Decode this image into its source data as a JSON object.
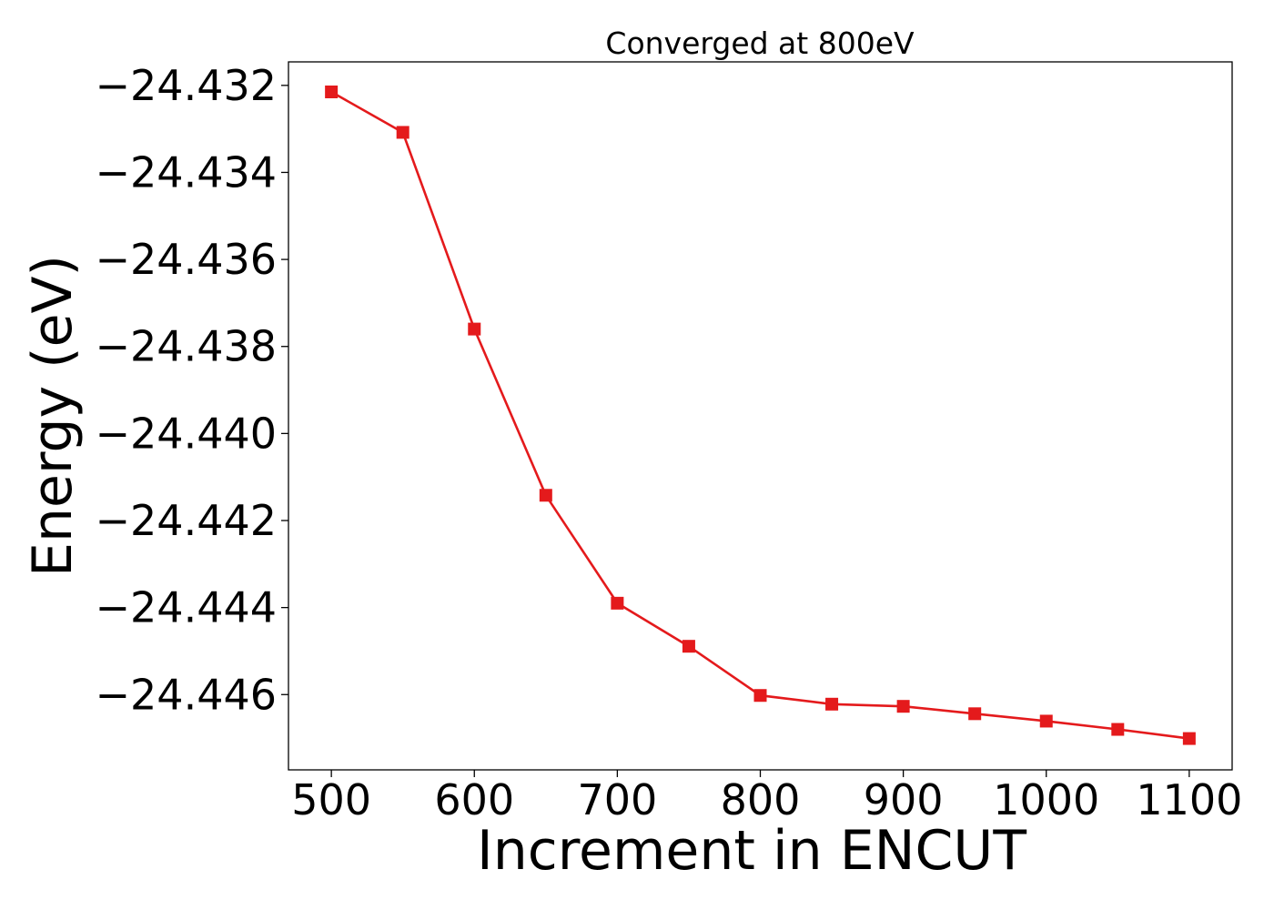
{
  "chart_data": {
    "type": "line",
    "title": "Converged at 800eV",
    "xlabel": "Increment in ENCUT",
    "ylabel": "Energy (eV)",
    "xlim": [
      470,
      1130
    ],
    "ylim": [
      -24.44773,
      -24.43146
    ],
    "xticks": [
      500,
      600,
      700,
      800,
      900,
      1000,
      1100
    ],
    "yticks": [
      -24.432,
      -24.434,
      -24.436,
      -24.438,
      -24.44,
      -24.442,
      -24.444,
      -24.446
    ],
    "ytick_labels": [
      "−24.432",
      "−24.434",
      "−24.436",
      "−24.438",
      "−24.440",
      "−24.442",
      "−24.444",
      "−24.446"
    ],
    "grid": false,
    "series": [
      {
        "color": "#e41a1c",
        "marker": "square",
        "x": [
          500,
          550,
          600,
          650,
          700,
          750,
          800,
          850,
          900,
          950,
          1000,
          1050,
          1100
        ],
        "y": [
          -24.43215,
          -24.43308,
          -24.4376,
          -24.44142,
          -24.4439,
          -24.44489,
          -24.44602,
          -24.44622,
          -24.44627,
          -24.44644,
          -24.44661,
          -24.4468,
          -24.44701
        ]
      }
    ]
  }
}
